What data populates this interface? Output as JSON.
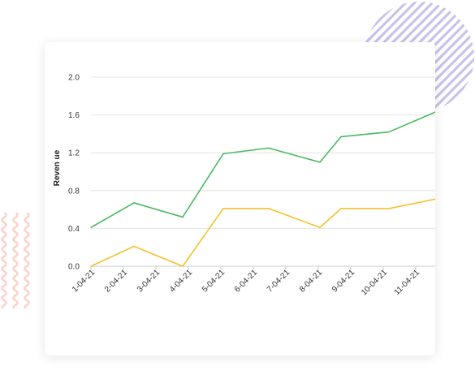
{
  "chart_data": {
    "type": "line",
    "title": "",
    "xlabel": "",
    "ylabel": "Reven ue",
    "ylim": [
      0,
      2.0
    ],
    "yticks": [
      "0.0",
      "0.4",
      "0.8",
      "1.2",
      "1.6",
      "2.0"
    ],
    "grid": true,
    "legend": "none",
    "categories": [
      "1-04-21",
      "2-04-21",
      "3-04-21",
      "4-04-21",
      "5-04-21",
      "6-04-21",
      "7-04-21",
      "8-04-21",
      "9-04-21",
      "10-04-21",
      "11-04-21"
    ],
    "series": [
      {
        "color": "#4cb960",
        "points": [
          [
            "1-04-21",
            0.41
          ],
          [
            "2-04-21",
            0.67
          ],
          [
            "3-04-21",
            0.52
          ],
          [
            "4-04-21",
            1.19
          ],
          [
            "5-04-21",
            1.25
          ],
          [
            "6-04-21",
            1.1
          ],
          [
            "7-04-21",
            1.37
          ],
          [
            "8-04-21",
            1.42
          ],
          [
            "9-04-21",
            1.63
          ]
        ]
      },
      {
        "color": "#f5c02b",
        "points": [
          [
            "1-04-21",
            0.0
          ],
          [
            "2-04-21",
            0.21
          ],
          [
            "3-04-21",
            0.0
          ],
          [
            "4-04-21",
            0.61
          ],
          [
            "5-04-21",
            0.61
          ],
          [
            "6-04-21",
            0.41
          ],
          [
            "7-04-21",
            0.61
          ],
          [
            "8-04-21",
            0.61
          ],
          [
            "9-04-21",
            0.71
          ]
        ]
      }
    ]
  },
  "decor": {
    "stripes_color": "#c9c2ea",
    "waves_color": "#fbd3cc"
  }
}
